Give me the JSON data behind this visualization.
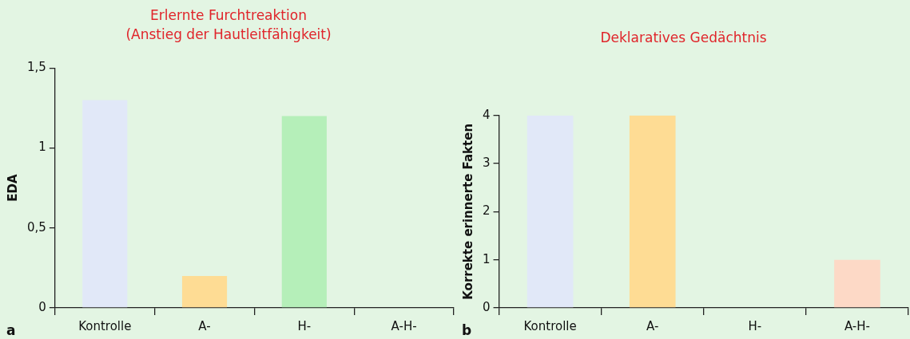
{
  "chart_data": [
    {
      "type": "bar",
      "title": "Erlernte Furchtreaktion\n(Anstieg der Hautleitfähigkeit)",
      "ylabel": "EDA",
      "categories": [
        "Kontrolle",
        "A-",
        "H-",
        "A-H-"
      ],
      "values": [
        1.3,
        0.2,
        1.2,
        0
      ],
      "colors": [
        "#e1e8f8",
        "#fedc94",
        "#b5efb9",
        null
      ],
      "ylim": [
        0,
        1.5
      ],
      "yticks": [
        0,
        {
          "value": 0.5,
          "label": "0,5"
        },
        1,
        {
          "value": 1.5,
          "label": "1,5"
        }
      ],
      "grid": false,
      "annotations": [
        "a"
      ]
    },
    {
      "type": "bar",
      "title": "Deklaratives Gedächtnis",
      "ylabel": "Korrekte erinnerte Fakten",
      "categories": [
        "Kontrolle",
        "A-",
        "H-",
        "A-H-"
      ],
      "values": [
        4,
        4,
        0,
        1
      ],
      "colors": [
        "#e1e8f8",
        "#fedc94",
        null,
        "#fdd9c6"
      ],
      "ylim": [
        0,
        4
      ],
      "yticks": [
        0,
        1,
        2,
        3,
        4
      ],
      "grid": false,
      "annotations": [
        "b"
      ]
    }
  ]
}
